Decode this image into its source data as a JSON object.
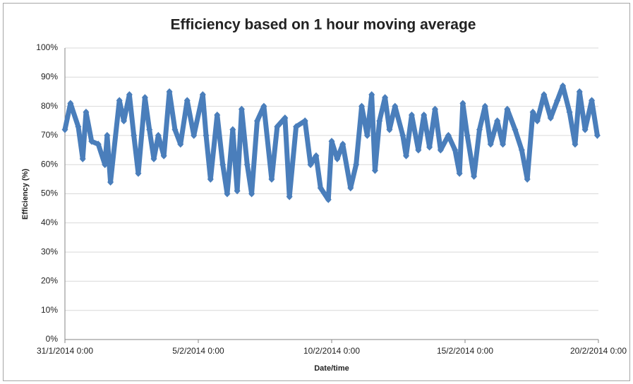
{
  "chart_data": {
    "type": "scatter",
    "title": "Efficiency based on 1 hour moving average",
    "x_label": "Date/time",
    "y_label": "Efficiency (%)",
    "grid": true,
    "marker": "diamond",
    "xlim": [
      "31/1/2014 0:00",
      "20/2/2014 0:00"
    ],
    "xticks": [
      "31/1/2014 0:00",
      "5/2/2014 0:00",
      "10/2/2014 0:00",
      "15/2/2014 0:00",
      "20/2/2014 0:00"
    ],
    "ylim": [
      0,
      100
    ],
    "yticks": [
      {
        "value": 0,
        "label": "0%"
      },
      {
        "value": 10,
        "label": "10%"
      },
      {
        "value": 20,
        "label": "20%"
      },
      {
        "value": 30,
        "label": "30%"
      },
      {
        "value": 40,
        "label": "40%"
      },
      {
        "value": 50,
        "label": "50%"
      },
      {
        "value": 60,
        "label": "60%"
      },
      {
        "value": 70,
        "label": "70%"
      },
      {
        "value": 80,
        "label": "80%"
      },
      {
        "value": 90,
        "label": "90%"
      },
      {
        "value": 100,
        "label": "100%"
      }
    ],
    "series": [
      {
        "color": "#4a7ebb",
        "x": [
          "31/1/2014 0:00",
          "31/1/2014 5:00",
          "31/1/2014 12:00",
          "31/1/2014 16:00",
          "31/1/2014 19:00",
          "1/2/2014 0:00",
          "1/2/2014 6:00",
          "1/2/2014 12:00",
          "1/2/2014 14:00",
          "1/2/2014 17:00",
          "2/2/2014 1:00",
          "2/2/2014 5:00",
          "2/2/2014 10:00",
          "2/2/2014 14:00",
          "2/2/2014 18:00",
          "3/2/2014 0:00",
          "3/2/2014 4:00",
          "3/2/2014 8:00",
          "3/2/2014 12:00",
          "3/2/2014 17:00",
          "3/2/2014 22:00",
          "4/2/2014 3:00",
          "4/2/2014 8:00",
          "4/2/2014 14:00",
          "4/2/2014 20:00",
          "5/2/2014 4:00",
          "5/2/2014 7:00",
          "5/2/2014 11:00",
          "5/2/2014 17:00",
          "5/2/2014 22:00",
          "6/2/2014 2:00",
          "6/2/2014 7:00",
          "6/2/2014 11:00",
          "6/2/2014 15:00",
          "6/2/2014 20:00",
          "7/2/2014 0:00",
          "7/2/2014 5:00",
          "7/2/2014 11:00",
          "7/2/2014 18:00",
          "7/2/2014 23:00",
          "8/2/2014 6:00",
          "8/2/2014 10:00",
          "8/2/2014 16:00",
          "9/2/2014 0:00",
          "9/2/2014 5:00",
          "9/2/2014 10:00",
          "9/2/2014 14:00",
          "9/2/2014 21:00",
          "10/2/2014 0:00",
          "10/2/2014 5:00",
          "10/2/2014 10:00",
          "10/2/2014 17:00",
          "10/2/2014 22:00",
          "11/2/2014 3:00",
          "11/2/2014 8:00",
          "11/2/2014 12:00",
          "11/2/2014 15:00",
          "11/2/2014 19:00",
          "12/2/2014 0:00",
          "12/2/2014 4:00",
          "12/2/2014 9:00",
          "12/2/2014 16:00",
          "12/2/2014 19:00",
          "13/2/2014 0:00",
          "13/2/2014 6:00",
          "13/2/2014 11:00",
          "13/2/2014 16:00",
          "13/2/2014 21:00",
          "14/2/2014 2:00",
          "14/2/2014 9:00",
          "14/2/2014 15:00",
          "14/2/2014 19:00",
          "14/2/2014 22:00",
          "15/2/2014 2:00",
          "15/2/2014 8:00",
          "15/2/2014 13:00",
          "15/2/2014 18:00",
          "15/2/2014 23:00",
          "16/2/2014 5:00",
          "16/2/2014 10:00",
          "16/2/2014 14:00",
          "16/2/2014 21:00",
          "17/2/2014 3:00",
          "17/2/2014 8:00",
          "17/2/2014 13:00",
          "17/2/2014 17:00",
          "17/2/2014 23:00",
          "18/2/2014 5:00",
          "18/2/2014 11:00",
          "18/2/2014 16:00",
          "18/2/2014 22:00",
          "19/2/2014 3:00",
          "19/2/2014 7:00",
          "19/2/2014 12:00",
          "19/2/2014 18:00",
          "19/2/2014 23:00"
        ],
        "values": [
          72,
          81,
          73,
          62,
          78,
          68,
          67,
          60,
          70,
          54,
          82,
          75,
          84,
          70,
          57,
          83,
          72,
          62,
          70,
          63,
          85,
          72,
          67,
          82,
          70,
          84,
          70,
          55,
          77,
          60,
          50,
          72,
          51,
          79,
          60,
          50,
          75,
          80,
          55,
          73,
          76,
          49,
          73,
          75,
          60,
          63,
          52,
          48,
          68,
          62,
          67,
          52,
          60,
          80,
          70,
          84,
          58,
          75,
          83,
          72,
          80,
          70,
          63,
          77,
          65,
          77,
          66,
          79,
          65,
          70,
          65,
          57,
          81,
          70,
          56,
          72,
          80,
          67,
          75,
          67,
          79,
          72,
          65,
          55,
          78,
          75,
          84,
          76,
          82,
          87,
          78,
          67,
          85,
          72,
          82,
          70
        ]
      }
    ]
  }
}
